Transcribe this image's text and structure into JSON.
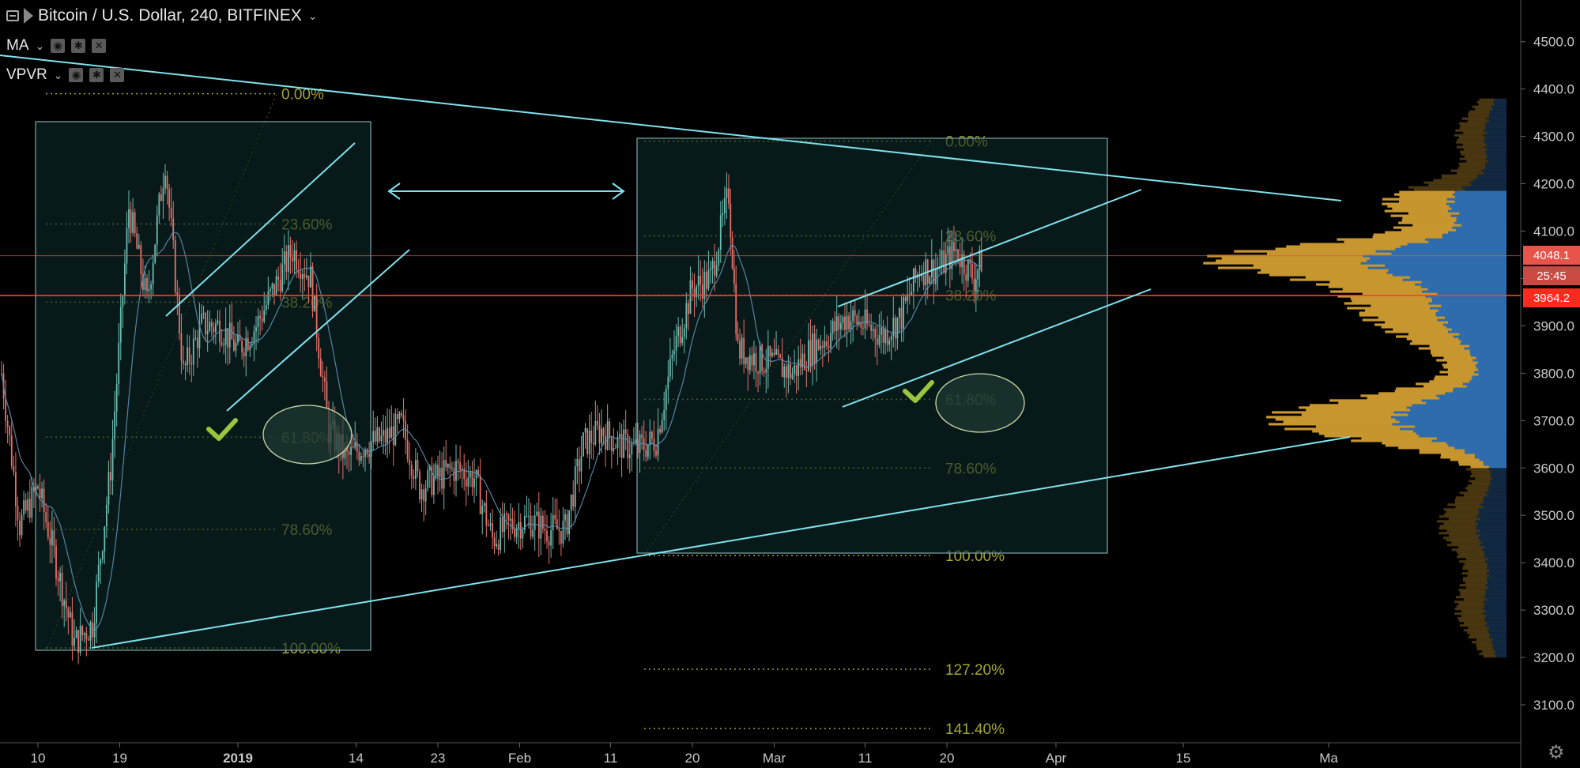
{
  "header": {
    "title": "Bitcoin / U.S. Dollar, 240, BITFINEX",
    "indicators": [
      {
        "label": "MA"
      },
      {
        "label": "VPVR"
      }
    ]
  },
  "price_tags": {
    "last_close": "4048.1",
    "countdown": "25:45",
    "red_line": "3964.2"
  },
  "colors": {
    "up": "#6bbcb0",
    "down": "#e8706a",
    "trendline": "#7fe3ee",
    "fib": "#a5a532",
    "volume_up": "#c8962e",
    "volume_value_area": "#2f6cae",
    "red_line": "#ff3b30",
    "accent_check": "#9bc53d"
  },
  "chart_data": {
    "type": "candlestick",
    "ylim": [
      3030,
      4570
    ],
    "y_ticks": [
      3100.0,
      3200.0,
      3300.0,
      3400.0,
      3500.0,
      3600.0,
      3700.0,
      3800.0,
      3900.0,
      4000.0,
      4100.0,
      4200.0,
      4300.0,
      4400.0,
      4500.0
    ],
    "y_tick_labels": [
      "3100.0",
      "3200.0",
      "3300.0",
      "3400.0",
      "3500.0",
      "3600.0",
      "3700.0",
      "3800.0",
      "3900.0",
      "4000.0",
      "4100.0",
      "4200.0",
      "4300.0",
      "4400.0",
      "4500.0"
    ],
    "x_ticks": [
      {
        "label": "10",
        "date": "2018-12-10"
      },
      {
        "label": "19",
        "date": "2018-12-19"
      },
      {
        "label": "2019",
        "date": "2019-01-01",
        "bold": true
      },
      {
        "label": "14",
        "date": "2019-01-14"
      },
      {
        "label": "23",
        "date": "2019-01-23"
      },
      {
        "label": "Feb",
        "date": "2019-02-01"
      },
      {
        "label": "11",
        "date": "2019-02-11"
      },
      {
        "label": "20",
        "date": "2019-02-20"
      },
      {
        "label": "Mar",
        "date": "2019-03-01"
      },
      {
        "label": "11",
        "date": "2019-03-11"
      },
      {
        "label": "20",
        "date": "2019-03-20"
      },
      {
        "label": "Apr",
        "date": "2019-04-01"
      },
      {
        "label": "15",
        "date": "2019-04-15"
      },
      {
        "label": "Ma",
        "date": "2019-05-01"
      }
    ],
    "close_path": [
      {
        "date": "2018-12-06",
        "price": 3800
      },
      {
        "date": "2018-12-08",
        "price": 3480
      },
      {
        "date": "2018-12-10",
        "price": 3560
      },
      {
        "date": "2018-12-12",
        "price": 3400
      },
      {
        "date": "2018-12-14",
        "price": 3230
      },
      {
        "date": "2018-12-16",
        "price": 3270
      },
      {
        "date": "2018-12-18",
        "price": 3600
      },
      {
        "date": "2018-12-20",
        "price": 4150
      },
      {
        "date": "2018-12-22",
        "price": 3950
      },
      {
        "date": "2018-12-24",
        "price": 4250
      },
      {
        "date": "2018-12-26",
        "price": 3800
      },
      {
        "date": "2018-12-28",
        "price": 3900
      },
      {
        "date": "2018-12-30",
        "price": 3900
      },
      {
        "date": "2019-01-01",
        "price": 3850
      },
      {
        "date": "2019-01-03",
        "price": 3900
      },
      {
        "date": "2019-01-05",
        "price": 3980
      },
      {
        "date": "2019-01-07",
        "price": 4060
      },
      {
        "date": "2019-01-09",
        "price": 4000
      },
      {
        "date": "2019-01-11",
        "price": 3680
      },
      {
        "date": "2019-01-13",
        "price": 3620
      },
      {
        "date": "2019-01-15",
        "price": 3650
      },
      {
        "date": "2019-01-17",
        "price": 3660
      },
      {
        "date": "2019-01-19",
        "price": 3690
      },
      {
        "date": "2019-01-21",
        "price": 3560
      },
      {
        "date": "2019-01-23",
        "price": 3580
      },
      {
        "date": "2019-01-25",
        "price": 3600
      },
      {
        "date": "2019-01-27",
        "price": 3580
      },
      {
        "date": "2019-01-29",
        "price": 3450
      },
      {
        "date": "2019-01-31",
        "price": 3480
      },
      {
        "date": "2019-02-02",
        "price": 3490
      },
      {
        "date": "2019-02-04",
        "price": 3470
      },
      {
        "date": "2019-02-06",
        "price": 3470
      },
      {
        "date": "2019-02-08",
        "price": 3650
      },
      {
        "date": "2019-02-10",
        "price": 3680
      },
      {
        "date": "2019-02-12",
        "price": 3650
      },
      {
        "date": "2019-02-14",
        "price": 3640
      },
      {
        "date": "2019-02-16",
        "price": 3660
      },
      {
        "date": "2019-02-18",
        "price": 3850
      },
      {
        "date": "2019-02-20",
        "price": 3980
      },
      {
        "date": "2019-02-22",
        "price": 4000
      },
      {
        "date": "2019-02-24",
        "price": 4180
      },
      {
        "date": "2019-02-25",
        "price": 3850
      },
      {
        "date": "2019-02-27",
        "price": 3830
      },
      {
        "date": "2019-03-01",
        "price": 3820
      },
      {
        "date": "2019-03-03",
        "price": 3800
      },
      {
        "date": "2019-03-05",
        "price": 3850
      },
      {
        "date": "2019-03-07",
        "price": 3880
      },
      {
        "date": "2019-03-09",
        "price": 3920
      },
      {
        "date": "2019-03-11",
        "price": 3900
      },
      {
        "date": "2019-03-13",
        "price": 3880
      },
      {
        "date": "2019-03-15",
        "price": 3920
      },
      {
        "date": "2019-03-17",
        "price": 4020
      },
      {
        "date": "2019-03-19",
        "price": 4020
      },
      {
        "date": "2019-03-21",
        "price": 4060
      },
      {
        "date": "2019-03-23",
        "price": 4000
      },
      {
        "date": "2019-03-24",
        "price": 4048
      }
    ],
    "fib_left": {
      "from": "2018-12-06",
      "to": "2019-01-02",
      "levels": [
        {
          "label": "0.00%",
          "price": 4390
        },
        {
          "label": "23.60%",
          "price": 4115
        },
        {
          "label": "38.20%",
          "price": 3950
        },
        {
          "label": "61.80%",
          "price": 3665
        },
        {
          "label": "78.60%",
          "price": 3470
        },
        {
          "label": "100.00%",
          "price": 3220
        }
      ]
    },
    "fib_right": {
      "from": "2019-02-07",
      "to": "2019-03-02",
      "levels": [
        {
          "label": "0.00%",
          "price": 4290
        },
        {
          "label": "23.60%",
          "price": 4090
        },
        {
          "label": "38.20%",
          "price": 3965
        },
        {
          "label": "61.80%",
          "price": 3745
        },
        {
          "label": "78.60%",
          "price": 3600
        },
        {
          "label": "100.00%",
          "price": 3415
        },
        {
          "label": "127.20%",
          "price": 3175
        },
        {
          "label": "141.40%",
          "price": 3050
        }
      ]
    },
    "red_price_line": 3964.2,
    "last_price_line": 4048.1
  }
}
